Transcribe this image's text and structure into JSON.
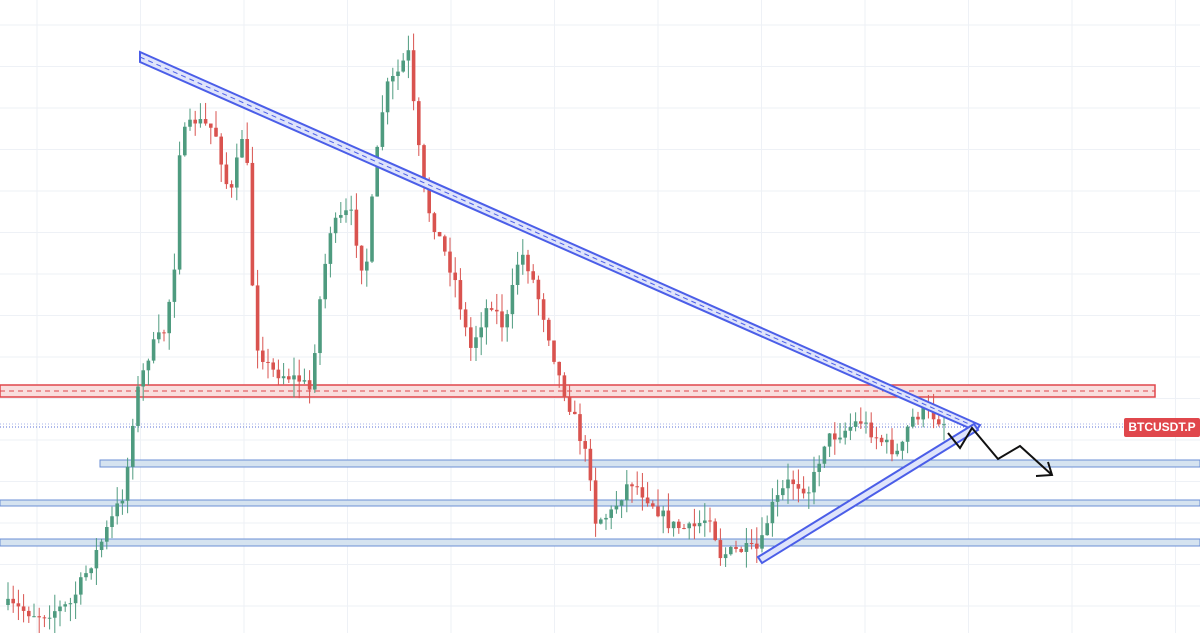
{
  "chart_data": {
    "type": "candlestick",
    "symbol_label": "BTCUSDT.P"
  }
}
